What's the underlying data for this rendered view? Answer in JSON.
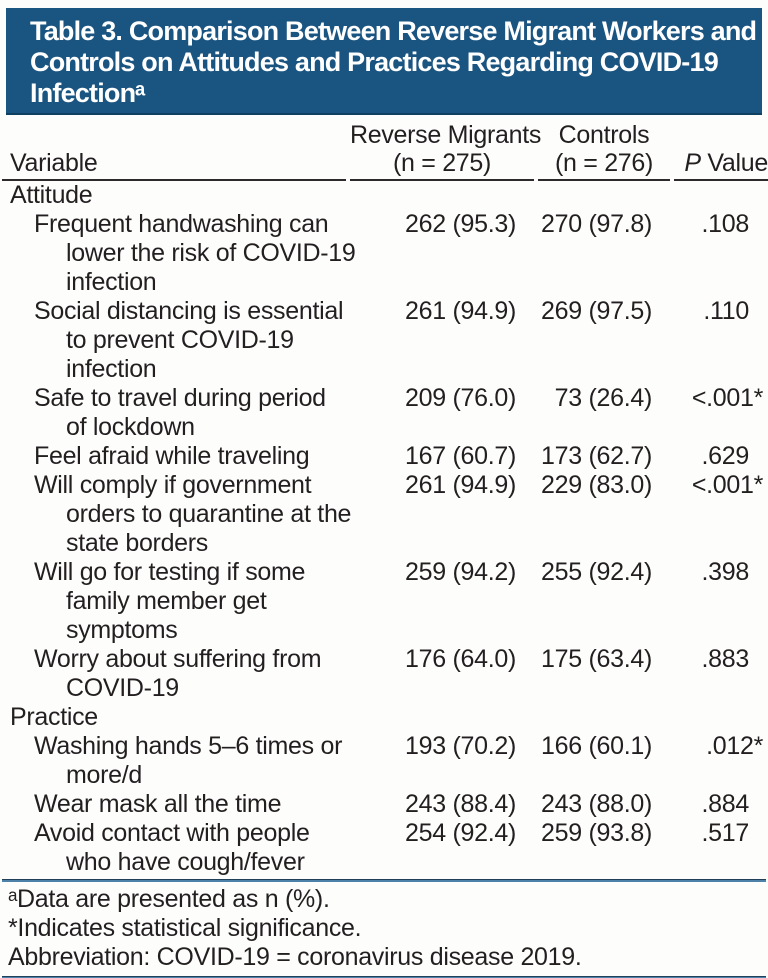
{
  "title": {
    "lines": [
      "Table 3. Comparison Between Reverse Migrant Workers and",
      "Controls on Attitudes and Practices Regarding COVID-19",
      "Infectionᵃ"
    ]
  },
  "header": {
    "variable": "Variable",
    "reverse_migrants": [
      "Reverse Migrants",
      "(n = 275)"
    ],
    "controls": [
      "Controls",
      "(n = 276)"
    ],
    "p_value": "P Value"
  },
  "rows": [
    {
      "type": "section",
      "label_lines": [
        "Attitude"
      ]
    },
    {
      "type": "item",
      "label_lines": [
        "Frequent handwashing can",
        "lower the risk of COVID-19",
        "infection"
      ],
      "reverse_migrants": "262 (95.3)",
      "controls": "270 (97.8)",
      "p_value": ".108"
    },
    {
      "type": "item",
      "label_lines": [
        "Social distancing is essential",
        "to prevent COVID-19",
        "infection"
      ],
      "reverse_migrants": "261 (94.9)",
      "controls": "269 (97.5)",
      "p_value": ".110"
    },
    {
      "type": "item",
      "label_lines": [
        "Safe to travel during period",
        "of lockdown"
      ],
      "reverse_migrants": "209 (76.0)",
      "controls": "73 (26.4)",
      "p_value": "<.001*"
    },
    {
      "type": "item",
      "label_lines": [
        "Feel afraid while traveling"
      ],
      "reverse_migrants": "167 (60.7)",
      "controls": "173 (62.7)",
      "p_value": ".629"
    },
    {
      "type": "item",
      "label_lines": [
        "Will comply if government",
        "orders to quarantine at the",
        "state borders"
      ],
      "reverse_migrants": "261 (94.9)",
      "controls": "229 (83.0)",
      "p_value": "<.001*"
    },
    {
      "type": "item",
      "label_lines": [
        "Will go for testing if some",
        "family member get",
        "symptoms"
      ],
      "reverse_migrants": "259 (94.2)",
      "controls": "255 (92.4)",
      "p_value": ".398"
    },
    {
      "type": "item",
      "label_lines": [
        "Worry about suffering from",
        "COVID-19"
      ],
      "reverse_migrants": "176 (64.0)",
      "controls": "175 (63.4)",
      "p_value": ".883"
    },
    {
      "type": "section",
      "label_lines": [
        "Practice"
      ]
    },
    {
      "type": "item",
      "label_lines": [
        "Washing hands 5–6 times or",
        "more/d"
      ],
      "reverse_migrants": "193 (70.2)",
      "controls": "166 (60.1)",
      "p_value": ".012*"
    },
    {
      "type": "item",
      "label_lines": [
        "Wear mask all the time"
      ],
      "reverse_migrants": "243 (88.4)",
      "controls": "243 (88.0)",
      "p_value": ".884"
    },
    {
      "type": "item",
      "label_lines": [
        "Avoid contact with people",
        "who have cough/fever"
      ],
      "reverse_migrants": "254 (92.4)",
      "controls": "259 (93.8)",
      "p_value": ".517"
    }
  ],
  "footnotes": [
    "ᵃData are presented as n (%).",
    "*Indicates statistical significance.",
    "Abbreviation: COVID-19 = coronavirus disease 2019."
  ],
  "colors": {
    "banner_blue": "#1a5480",
    "rule_blue": "#4d83ab",
    "header_rule_black": "#2e2a2b",
    "text": "#231f20",
    "title_text": "#ffffff"
  }
}
